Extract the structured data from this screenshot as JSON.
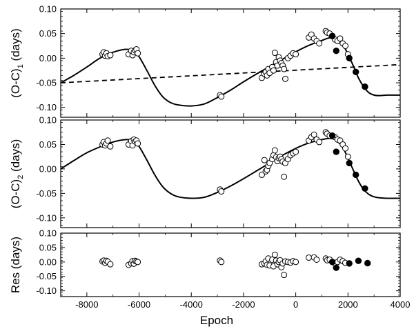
{
  "chart_data": [
    {
      "type": "scatter",
      "panel": "top",
      "ylabel": {
        "prefix": "(O-C)",
        "subscript": "1",
        "suffix": " (days)"
      },
      "xlim": [
        -9000,
        4000
      ],
      "ylim": [
        -0.12,
        0.1
      ],
      "yticks": [
        "0.10",
        "0.05",
        "0.00",
        "-0.05",
        "-0.10"
      ],
      "ytick_values": [
        0.1,
        0.05,
        0.0,
        -0.05,
        -0.1
      ],
      "curve": {
        "name": "",
        "x": [
          -9000,
          -8500,
          -8000,
          -7500,
          -7000,
          -6500,
          -6200,
          -6000,
          -5700,
          -5400,
          -5100,
          -4800,
          -4500,
          -4000,
          -3500,
          -3000,
          -2500,
          -2000,
          -1500,
          -1000,
          -500,
          0,
          500,
          1000,
          1200,
          1400,
          1600,
          1800,
          2000,
          2200,
          2400,
          2600,
          2800,
          3000,
          3200,
          3500,
          3800,
          4000
        ],
        "y": [
          -0.05,
          -0.035,
          -0.018,
          0.0,
          0.012,
          0.018,
          0.014,
          0.003,
          -0.025,
          -0.055,
          -0.078,
          -0.09,
          -0.095,
          -0.097,
          -0.093,
          -0.08,
          -0.065,
          -0.048,
          -0.032,
          -0.017,
          -0.002,
          0.013,
          0.026,
          0.036,
          0.04,
          0.042,
          0.038,
          0.028,
          0.008,
          -0.015,
          -0.04,
          -0.058,
          -0.07,
          -0.075,
          -0.076,
          -0.075,
          -0.075,
          -0.075
        ]
      },
      "trend_line": {
        "x": [
          -9000,
          4000
        ],
        "y": [
          -0.05,
          -0.013
        ]
      },
      "open_points": {
        "x": [
          -7400,
          -7350,
          -7300,
          -7250,
          -7200,
          -7100,
          -6400,
          -6300,
          -6250,
          -6200,
          -6150,
          -6100,
          -6050,
          -2900,
          -2850,
          -1300,
          -1200,
          -1150,
          -1100,
          -1050,
          -1000,
          -900,
          -850,
          -800,
          -750,
          -700,
          -650,
          -600,
          -550,
          -500,
          -450,
          -400,
          -300,
          -200,
          -100,
          0,
          500,
          600,
          700,
          800,
          900,
          1150,
          1200,
          1300,
          1500,
          1600,
          1700,
          1800,
          1900,
          2000
        ],
        "y": [
          0.008,
          0.012,
          0.005,
          0.01,
          0.004,
          0.006,
          0.008,
          0.015,
          0.006,
          0.012,
          0.016,
          0.018,
          0.01,
          -0.075,
          -0.078,
          -0.04,
          -0.032,
          -0.028,
          -0.035,
          -0.022,
          -0.03,
          -0.018,
          -0.025,
          0.011,
          -0.008,
          -0.015,
          0.002,
          -0.005,
          -0.01,
          -0.015,
          -0.022,
          -0.042,
          0.0,
          0.005,
          0.01,
          0.008,
          0.042,
          0.048,
          0.04,
          0.035,
          0.03,
          0.055,
          0.052,
          0.05,
          0.038,
          0.035,
          0.04,
          0.03,
          0.025,
          0.008
        ]
      },
      "filled_points": {
        "x": [
          1400,
          1550,
          2050,
          2300,
          2650
        ],
        "y": [
          0.045,
          0.015,
          0.0,
          -0.028,
          -0.058
        ]
      }
    },
    {
      "type": "scatter",
      "panel": "middle",
      "ylabel": {
        "prefix": "(O-C)",
        "subscript": "2",
        "suffix": " (days)"
      },
      "xlim": [
        -9000,
        4000
      ],
      "ylim": [
        -0.12,
        0.1
      ],
      "yticks": [
        "0.10",
        "0.05",
        "0.00",
        "-0.05",
        "-0.10"
      ],
      "ytick_values": [
        0.1,
        0.05,
        0.0,
        -0.05,
        -0.1
      ],
      "curve": {
        "name": "",
        "x": [
          -9000,
          -8500,
          -8000,
          -7500,
          -7000,
          -6500,
          -6200,
          -6000,
          -5700,
          -5400,
          -5100,
          -4800,
          -4500,
          -4000,
          -3500,
          -3000,
          -2500,
          -2000,
          -1500,
          -1000,
          -500,
          0,
          500,
          1000,
          1200,
          1400,
          1600,
          1800,
          2000,
          2200,
          2400,
          2600,
          2800,
          3000,
          3200,
          3500,
          3800,
          4000
        ],
        "y": [
          0.0,
          0.017,
          0.033,
          0.045,
          0.055,
          0.06,
          0.057,
          0.046,
          0.018,
          -0.012,
          -0.036,
          -0.05,
          -0.057,
          -0.06,
          -0.058,
          -0.048,
          -0.035,
          -0.02,
          -0.004,
          0.012,
          0.028,
          0.042,
          0.053,
          0.06,
          0.062,
          0.062,
          0.056,
          0.044,
          0.022,
          -0.002,
          -0.025,
          -0.042,
          -0.052,
          -0.057,
          -0.059,
          -0.06,
          -0.06,
          -0.06
        ]
      },
      "open_points": {
        "x": [
          -7400,
          -7350,
          -7300,
          -7250,
          -7200,
          -7100,
          -6400,
          -6300,
          -6250,
          -6200,
          -6150,
          -6100,
          -6050,
          -2900,
          -2850,
          -1300,
          -1200,
          -1150,
          -1100,
          -1050,
          -1000,
          -900,
          -850,
          -800,
          -750,
          -700,
          -650,
          -600,
          -550,
          -500,
          -450,
          -400,
          -300,
          -200,
          -100,
          0,
          500,
          600,
          700,
          800,
          900,
          1150,
          1200,
          1300,
          1500,
          1600,
          1700,
          1800,
          1900,
          2000
        ],
        "y": [
          0.05,
          0.055,
          0.048,
          0.052,
          0.058,
          0.046,
          0.05,
          0.057,
          0.048,
          0.06,
          0.056,
          0.058,
          0.052,
          -0.042,
          -0.046,
          -0.012,
          0.018,
          -0.005,
          -0.002,
          0.006,
          0.012,
          0.02,
          0.028,
          0.038,
          0.024,
          0.016,
          0.022,
          0.025,
          0.02,
          0.015,
          -0.016,
          0.012,
          0.02,
          0.028,
          0.032,
          0.035,
          0.058,
          0.065,
          0.07,
          0.06,
          0.055,
          0.075,
          0.072,
          0.068,
          0.065,
          0.06,
          0.058,
          0.05,
          0.042,
          0.025
        ]
      },
      "filled_points": {
        "x": [
          1400,
          1550,
          2050,
          2300,
          2650
        ],
        "y": [
          0.068,
          0.035,
          0.012,
          -0.012,
          -0.04
        ]
      }
    },
    {
      "type": "scatter",
      "panel": "bottom",
      "xlabel": "Epoch",
      "ylabel": {
        "prefix": "Res (days)",
        "subscript": "",
        "suffix": ""
      },
      "xlim": [
        -9000,
        4000
      ],
      "ylim": [
        -0.12,
        0.1
      ],
      "xticks": [
        "-8000",
        "-6000",
        "-4000",
        "-2000",
        "0",
        "2000",
        "4000"
      ],
      "xtick_values": [
        -8000,
        -6000,
        -4000,
        -2000,
        0,
        2000,
        4000
      ],
      "yticks": [
        "0.10",
        "0.05",
        "0.00",
        "-0.05",
        "-0.10"
      ],
      "ytick_values": [
        0.1,
        0.05,
        0.0,
        -0.05,
        -0.1
      ],
      "open_points": {
        "x": [
          -7400,
          -7350,
          -7300,
          -7250,
          -7200,
          -7100,
          -6400,
          -6300,
          -6250,
          -6200,
          -6150,
          -6100,
          -6050,
          -2900,
          -2850,
          -1300,
          -1200,
          -1150,
          -1100,
          -1050,
          -1000,
          -900,
          -850,
          -800,
          -750,
          -700,
          -650,
          -600,
          -550,
          -500,
          -450,
          -400,
          -300,
          -200,
          -100,
          0,
          500,
          700,
          800,
          1150,
          1200,
          1300,
          1500,
          1600,
          1700,
          1800,
          1900
        ],
        "y": [
          0.002,
          0.005,
          -0.003,
          0.004,
          0.001,
          -0.008,
          -0.01,
          -0.005,
          0.003,
          -0.006,
          0.004,
          0.002,
          0.0,
          0.005,
          0.0,
          -0.008,
          -0.005,
          0.002,
          -0.01,
          0.012,
          -0.012,
          0.008,
          -0.015,
          0.025,
          0.005,
          -0.008,
          0.0,
          0.006,
          -0.018,
          -0.005,
          -0.045,
          0.002,
          0.0,
          -0.002,
          0.003,
          0.0,
          0.015,
          0.016,
          0.008,
          0.012,
          0.006,
          0.008,
          -0.005,
          0.0,
          0.008,
          0.003,
          -0.003
        ]
      },
      "filled_points": {
        "x": [
          1400,
          1550,
          2050,
          2400,
          2750
        ],
        "y": [
          0.0,
          -0.02,
          -0.005,
          0.004,
          -0.004
        ]
      }
    }
  ]
}
